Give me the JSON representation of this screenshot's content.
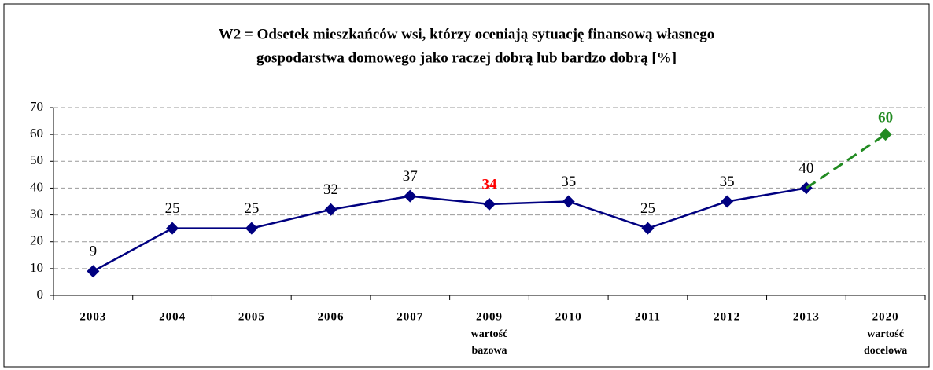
{
  "chart_data": {
    "type": "line",
    "title": [
      "W2 = Odsetek mieszkańców wsi, którzy oceniają sytuację finansową własnego",
      "gospodarstwa domowego jako raczej dobrą lub bardzo dobrą [%]"
    ],
    "categories": [
      "2003",
      "2004",
      "2005",
      "2006",
      "2007",
      "2009",
      "2010",
      "2011",
      "2012",
      "2013",
      "2020"
    ],
    "category_sublabels": [
      null,
      null,
      null,
      null,
      null,
      [
        "wartość",
        "bazowa"
      ],
      null,
      null,
      null,
      null,
      [
        "wartość",
        "docelowa"
      ]
    ],
    "series": [
      {
        "color": "#000080",
        "values": [
          9,
          25,
          25,
          32,
          37,
          34,
          35,
          25,
          35,
          40,
          null
        ]
      }
    ],
    "target": {
      "value": 60,
      "color": "#228b22"
    },
    "highlight_index": 5,
    "highlight_color": "#ff0000",
    "ylim": [
      0,
      70
    ],
    "yticks": [
      0,
      10,
      20,
      30,
      40,
      50,
      60,
      70
    ],
    "grid": true
  }
}
